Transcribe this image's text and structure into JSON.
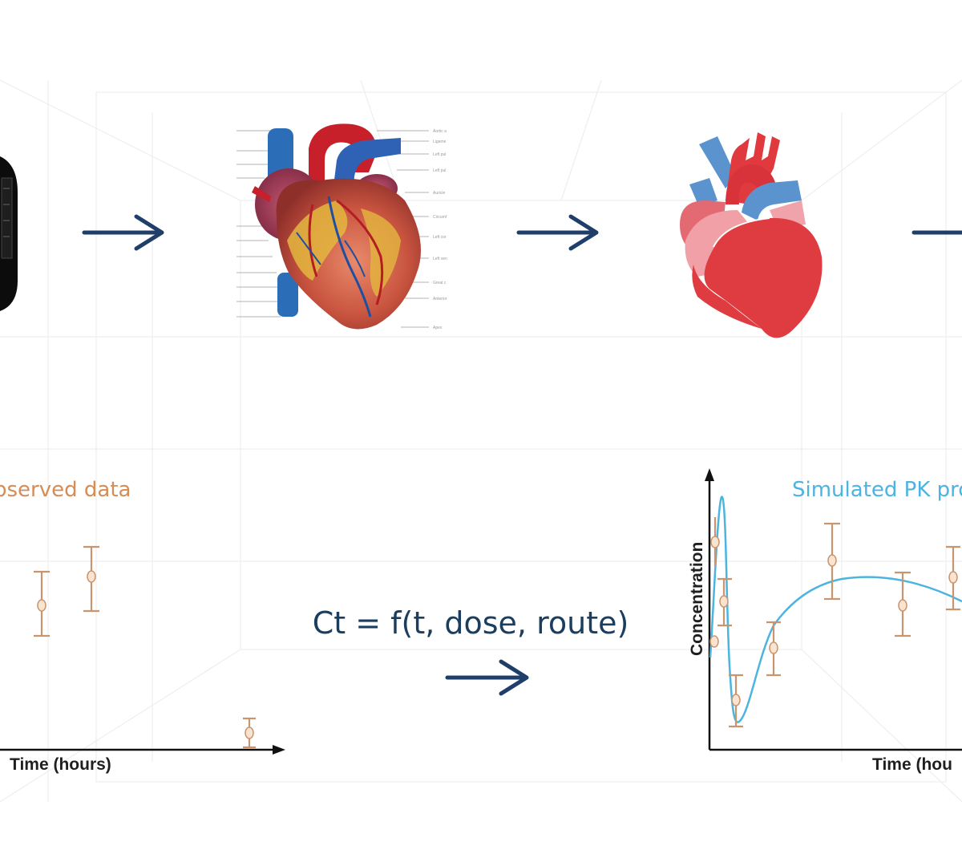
{
  "colors": {
    "arrow": "#1f3f6a",
    "observed": "#d58c55",
    "simulated": "#4cb4e0",
    "equation": "#1b3d5e",
    "axis": "#111111"
  },
  "steps": [
    {
      "id": "device",
      "icon": "device-icon"
    },
    {
      "id": "anatomical_heart",
      "icon": "anatomical-heart-icon"
    },
    {
      "id": "simplified_heart",
      "icon": "simplified-heart-icon"
    }
  ],
  "observed_panel": {
    "title": "bserved data",
    "xlabel": "Time (hours)"
  },
  "equation": {
    "text": "Ct = f(t, dose, route)"
  },
  "simulated_panel": {
    "title": "Simulated PK pro",
    "xlabel": "Time (hou",
    "ylabel": "Concentration"
  }
}
